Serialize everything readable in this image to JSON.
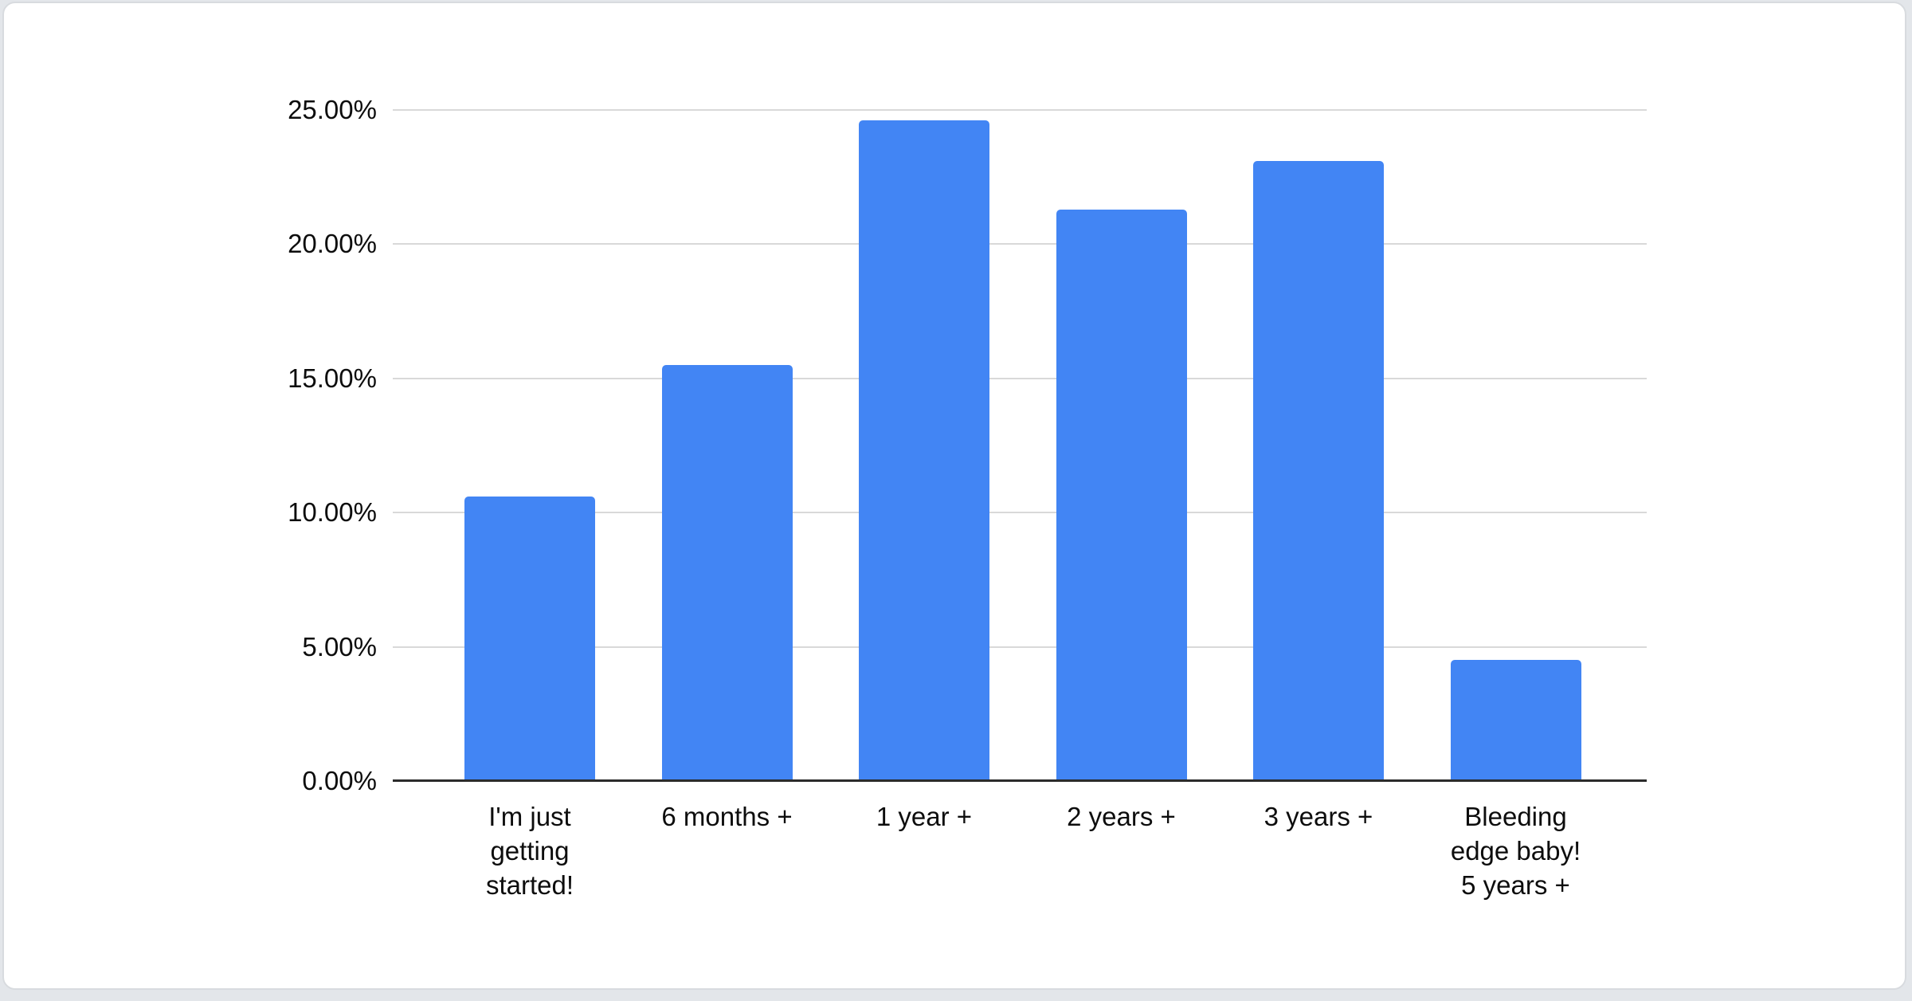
{
  "page": {
    "background_color": "#e3e6ea",
    "card": {
      "background_color": "#ffffff",
      "border_color": "#d8dbdf"
    }
  },
  "chart_data": {
    "type": "bar",
    "title": "",
    "xlabel": "",
    "ylabel": "",
    "categories": [
      "I'm just getting started!",
      "6 months +",
      "1 year +",
      "2 years +",
      "3 years +",
      "Bleeding edge baby! 5 years +"
    ],
    "category_lines": [
      [
        "I'm just",
        "getting",
        "started!"
      ],
      [
        "6 months +"
      ],
      [
        "1 year +"
      ],
      [
        "2 years +"
      ],
      [
        "3 years +"
      ],
      [
        "Bleeding",
        "edge baby!",
        "5 years +"
      ]
    ],
    "values": [
      10.6,
      15.5,
      24.6,
      21.3,
      23.1,
      4.5
    ],
    "value_unit": "percent",
    "ylim": [
      0,
      25
    ],
    "ytick_step": 5,
    "ytick_labels": [
      "0.00%",
      "5.00%",
      "10.00%",
      "15.00%",
      "20.00%",
      "25.00%"
    ],
    "grid": true,
    "legend_position": "none",
    "bar_color": "#4285f4",
    "gridline_color": "#d9d9d9",
    "axis_line_color": "#2b2b2b",
    "label_color": "#0d0d0d"
  }
}
